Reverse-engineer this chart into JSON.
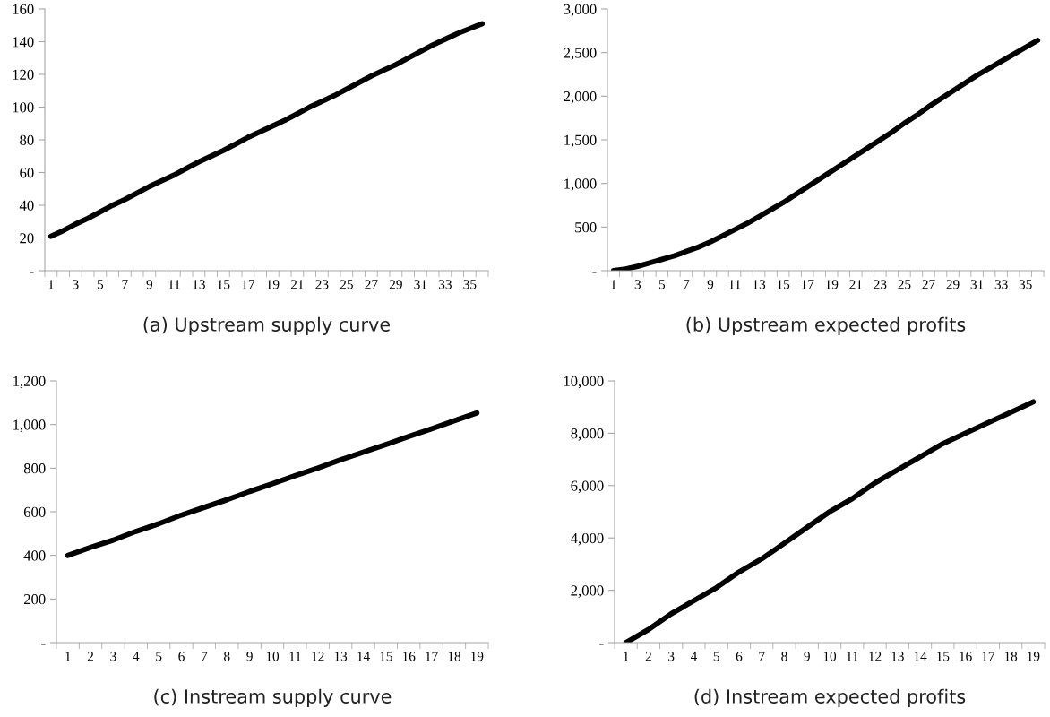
{
  "chart_data": [
    {
      "type": "line",
      "title": "(a) Upstream supply curve",
      "categories": [
        "1",
        null,
        "3",
        null,
        "5",
        null,
        "7",
        null,
        "9",
        null,
        "11",
        null,
        "13",
        null,
        "15",
        null,
        "17",
        null,
        "19",
        null,
        "21",
        null,
        "23",
        null,
        "25",
        null,
        "27",
        null,
        "29",
        null,
        "31",
        null,
        "33",
        null,
        "35",
        null
      ],
      "series": [
        {
          "color": "#000000",
          "values": [
            21,
            24.5,
            28.5,
            32,
            36,
            40,
            43.5,
            47.5,
            51.5,
            55,
            58.5,
            62.5,
            66.5,
            70,
            73.5,
            77.5,
            81.5,
            85,
            88.5,
            92,
            96,
            100,
            103.5,
            107,
            111,
            115,
            119,
            122.5,
            126,
            130,
            134,
            138,
            141.5,
            145,
            148,
            151
          ]
        }
      ],
      "ylim": [
        0,
        160
      ],
      "yticks": [
        {
          "value": 0,
          "label": "-"
        },
        20,
        40,
        60,
        80,
        100,
        120,
        140,
        160
      ],
      "grid": false,
      "legend": false,
      "marker": "none",
      "line_style": "solid"
    },
    {
      "type": "line",
      "title": "(b) Upstream expected profits",
      "categories": [
        "1",
        null,
        "3",
        null,
        "5",
        null,
        "7",
        null,
        "9",
        null,
        "11",
        null,
        "13",
        null,
        "15",
        null,
        "17",
        null,
        "19",
        null,
        "21",
        null,
        "23",
        null,
        "25",
        null,
        "27",
        null,
        "29",
        null,
        "31",
        null,
        "33",
        null,
        "35",
        null
      ],
      "series": [
        {
          "color": "#000000",
          "values": [
            0,
            20,
            50,
            90,
            130,
            170,
            220,
            270,
            330,
            400,
            470,
            540,
            620,
            700,
            780,
            870,
            960,
            1050,
            1140,
            1230,
            1320,
            1410,
            1500,
            1590,
            1690,
            1780,
            1880,
            1970,
            2060,
            2150,
            2240,
            2320,
            2400,
            2480,
            2560,
            2640
          ]
        }
      ],
      "ylim": [
        0,
        3000
      ],
      "yticks": [
        {
          "value": 0,
          "label": "-"
        },
        500,
        {
          "value": 1000,
          "label": "1,000"
        },
        {
          "value": 1500,
          "label": "1,500"
        },
        {
          "value": 2000,
          "label": "2,000"
        },
        {
          "value": 2500,
          "label": "2,500"
        },
        {
          "value": 3000,
          "label": "3,000"
        }
      ],
      "grid": false,
      "legend": false,
      "marker": "none",
      "line_style": "solid"
    },
    {
      "type": "line",
      "title": "(c) Instream supply curve",
      "categories": [
        "1",
        "2",
        "3",
        "4",
        "5",
        "6",
        "7",
        "8",
        "9",
        "10",
        "11",
        "12",
        "13",
        "14",
        "15",
        "16",
        "17",
        "18",
        "19"
      ],
      "series": [
        {
          "color": "#000000",
          "values": [
            400,
            437,
            470,
            510,
            545,
            585,
            620,
            655,
            693,
            728,
            765,
            800,
            838,
            873,
            908,
            945,
            980,
            1017,
            1053
          ]
        }
      ],
      "ylim": [
        0,
        1200
      ],
      "yticks": [
        {
          "value": 0,
          "label": "-"
        },
        200,
        400,
        600,
        800,
        {
          "value": 1000,
          "label": "1,000"
        },
        {
          "value": 1200,
          "label": "1,200"
        }
      ],
      "grid": false,
      "legend": false,
      "marker": "none",
      "line_style": "solid"
    },
    {
      "type": "line",
      "title": "(d) Instream expected profits",
      "categories": [
        "1",
        "2",
        "3",
        "4",
        "5",
        "6",
        "7",
        "8",
        "9",
        "10",
        "11",
        "12",
        "13",
        "14",
        "15",
        "16",
        "17",
        "18",
        "19"
      ],
      "series": [
        {
          "color": "#000000",
          "values": [
            0,
            500,
            1100,
            1600,
            2100,
            2700,
            3200,
            3800,
            4400,
            5000,
            5500,
            6100,
            6600,
            7100,
            7600,
            8000,
            8400,
            8800,
            9200
          ]
        }
      ],
      "ylim": [
        0,
        10000
      ],
      "yticks": [
        {
          "value": 0,
          "label": "-"
        },
        {
          "value": 2000,
          "label": "2,000"
        },
        {
          "value": 4000,
          "label": "4,000"
        },
        {
          "value": 6000,
          "label": "6,000"
        },
        {
          "value": 8000,
          "label": "8,000"
        },
        {
          "value": 10000,
          "label": "10,000"
        }
      ],
      "grid": false,
      "legend": false,
      "marker": "none",
      "line_style": "solid"
    }
  ]
}
